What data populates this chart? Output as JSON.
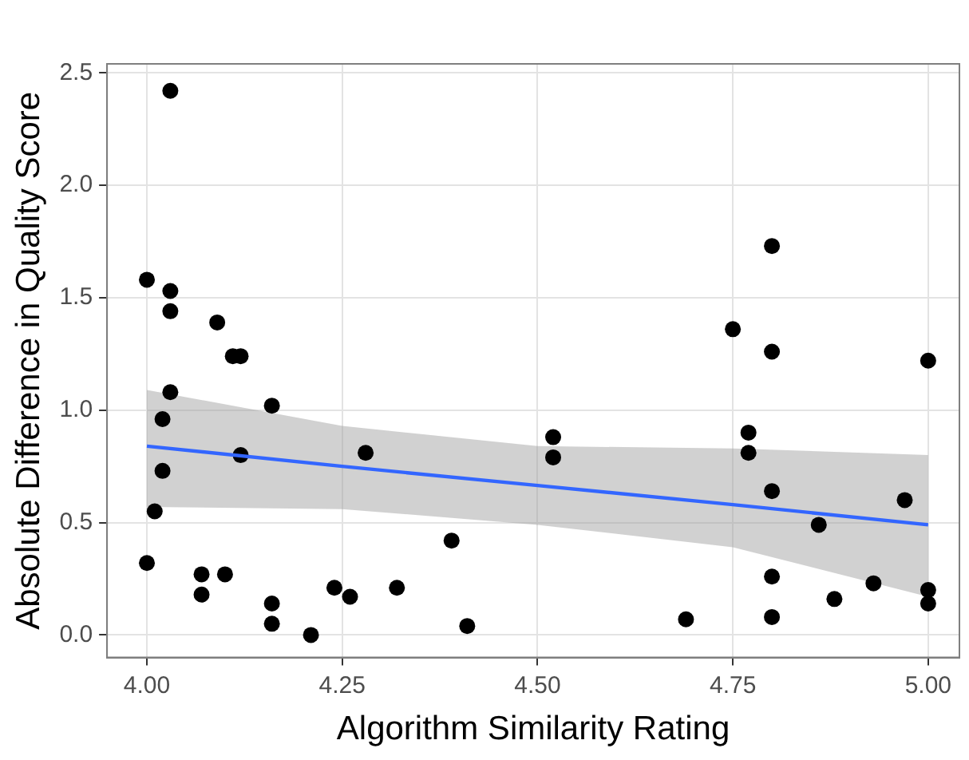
{
  "chart_data": {
    "type": "scatter",
    "xlabel": "Algorithm Similarity Rating",
    "ylabel": "Absolute Difference in Quality Score",
    "xlim": [
      3.949,
      5.04
    ],
    "ylim": [
      -0.1,
      2.54
    ],
    "xticks": [
      {
        "value": 4,
        "label": "4.00"
      },
      {
        "value": 4.25,
        "label": "4.25"
      },
      {
        "value": 4.5,
        "label": "4.50"
      },
      {
        "value": 4.75,
        "label": "4.75"
      },
      {
        "value": 5,
        "label": "5.00"
      }
    ],
    "yticks": [
      {
        "value": 0,
        "label": "0.0"
      },
      {
        "value": 0.5,
        "label": "0.5"
      },
      {
        "value": 1,
        "label": "1.0"
      },
      {
        "value": 1.5,
        "label": "1.5"
      },
      {
        "value": 2,
        "label": "2.0"
      },
      {
        "value": 2.5,
        "label": "2.5"
      }
    ],
    "grid": true,
    "legend": false,
    "marker": "circle",
    "series": [
      {
        "type": "scatter",
        "color": "#000000",
        "x": [
          4.0,
          4.03,
          4.03,
          4.03,
          4.09,
          4.11,
          4.12,
          4.03,
          4.16,
          4.02,
          4.01,
          4.02,
          4.12,
          4.28,
          4.0,
          4.07,
          4.1,
          4.07,
          4.16,
          4.16,
          4.21,
          4.24,
          4.26,
          4.32,
          4.39,
          4.41,
          4.52,
          4.52,
          4.69,
          4.75,
          4.77,
          4.77,
          4.8,
          4.8,
          4.8,
          4.8,
          4.8,
          4.86,
          4.88,
          4.93,
          4.97,
          5.0,
          5.0,
          5.0
        ],
        "values": [
          1.58,
          2.42,
          1.53,
          1.44,
          1.39,
          1.24,
          1.24,
          1.08,
          1.02,
          0.96,
          0.55,
          0.73,
          0.8,
          0.81,
          0.32,
          0.27,
          0.27,
          0.18,
          0.14,
          0.05,
          0.0,
          0.21,
          0.17,
          0.21,
          0.42,
          0.04,
          0.88,
          0.79,
          0.07,
          1.36,
          0.9,
          0.81,
          1.73,
          1.26,
          0.64,
          0.26,
          0.08,
          0.49,
          0.16,
          0.23,
          0.6,
          1.22,
          0.2,
          0.14
        ]
      },
      {
        "type": "line",
        "color": "#3366ff",
        "marker": "none",
        "x": [
          4.0,
          4.25,
          4.5,
          4.75,
          5.0
        ],
        "values": [
          0.84,
          0.75,
          0.665,
          0.58,
          0.49
        ],
        "lower": [
          0.57,
          0.56,
          0.49,
          0.39,
          0.17
        ],
        "upper": [
          1.09,
          0.93,
          0.84,
          0.83,
          0.8
        ]
      }
    ]
  }
}
